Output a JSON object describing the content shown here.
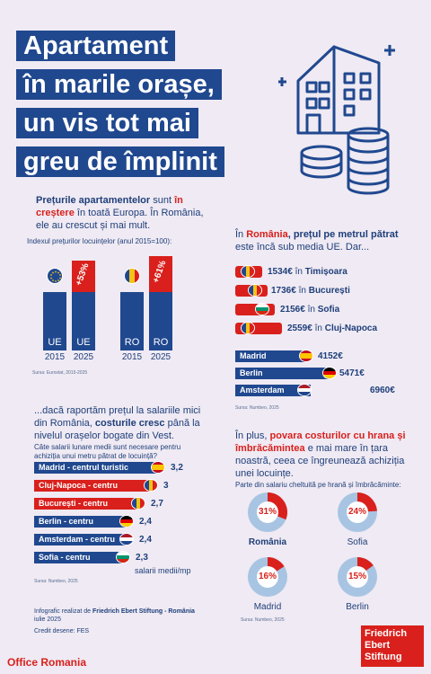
{
  "title": {
    "lines": [
      "Apartament",
      "în marile orașe,",
      "un vis tot mai",
      "greu de împlinit"
    ]
  },
  "section1": {
    "intro_parts": [
      "Prețurile apartamentelor",
      " sunt ",
      "în creștere",
      " în toată Europa. În România, ele au crescut și mai mult."
    ],
    "index_label": "Indexul prețurilor locuințelor (anul 2015=100):",
    "bars": [
      {
        "label": "UE",
        "year": "2015",
        "flag": "eu-flag"
      },
      {
        "label": "UE",
        "year": "2025",
        "pct": "+53%"
      },
      {
        "label": "RO",
        "year": "2015",
        "flag": "ro-flag"
      },
      {
        "label": "RO",
        "year": "2025",
        "pct": "+61%"
      }
    ],
    "source": "Sursa: Eurostat, 2015-2025"
  },
  "section2": {
    "intro_parts": [
      "În ",
      "România",
      ", prețul pe metrul pătrat",
      " este încă sub media UE. Dar..."
    ],
    "ro_cities": [
      {
        "value": "1534€",
        "prep": "în",
        "city": "Timișoara"
      },
      {
        "value": "1736€",
        "prep": "în",
        "city": "București"
      },
      {
        "value": "2156€",
        "prep": "în",
        "city": "Sofia"
      },
      {
        "value": "2559€",
        "prep": "în",
        "city": "Cluj-Napoca"
      }
    ],
    "eu_cities": [
      {
        "city": "Madrid",
        "value": "4152€",
        "frac": 0.6
      },
      {
        "city": "Berlin",
        "value": "5471€",
        "frac": 0.79
      },
      {
        "city": "Amsterdam",
        "value": "6960€",
        "frac": 1.0
      }
    ],
    "source": "Sursa: Numbeo, 2025"
  },
  "section3": {
    "intro_parts": [
      "...dacă raportăm prețul la salariile mici din România, ",
      "costurile cresc",
      " până la nivelul orașelor bogate din Vest."
    ],
    "question": "Câte salarii lunare medii sunt necesare pentru achiziția unui metru pătrat de locuință?",
    "rows": [
      {
        "label": "Madrid - centrul turistic",
        "value": "3,2",
        "color": "#20488f",
        "frac": 1.0
      },
      {
        "label": "Cluj-Napoca - centru",
        "value": "3",
        "color": "#d9201c",
        "frac": 0.94
      },
      {
        "label": "București - centru",
        "value": "2,7",
        "color": "#d9201c",
        "frac": 0.84
      },
      {
        "label": "Berlin - centru",
        "value": "2,4",
        "color": "#20488f",
        "frac": 0.75
      },
      {
        "label": "Amsterdam - centru",
        "value": "2,4",
        "color": "#20488f",
        "frac": 0.75
      },
      {
        "label": "Sofia - centru",
        "value": "2,3",
        "color": "#20488f",
        "frac": 0.72
      }
    ],
    "unit": "salarii medii/mp",
    "source": "Sursa: Numbeo, 2025"
  },
  "section4": {
    "intro_parts": [
      "În plus, ",
      "povara costurilor cu hrana și îmbrăcămintea",
      " e mai mare în țara noastră, ceea ce îngreunează achiziția unei locuințe."
    ],
    "subtitle": "Parte din salariu cheltuită pe hrană și îmbrăcăminte:",
    "donuts": [
      {
        "city": "România",
        "pct": "31%",
        "value": 0.31,
        "highlight": true
      },
      {
        "city": "Sofia",
        "pct": "24%",
        "value": 0.24,
        "highlight": false
      },
      {
        "city": "Madrid",
        "pct": "16%",
        "value": 0.16,
        "highlight": false
      },
      {
        "city": "Berlin",
        "pct": "15%",
        "value": 0.15,
        "highlight": false
      }
    ],
    "source": "Sursa: Numbeo, 2025"
  },
  "footer": {
    "credit_prefix": "Infografic realizat de ",
    "credit_org": "Friedrich Ebert Stiftung - România",
    "credit_date": "iulie 2025",
    "credit_design": "Credit desene: FES",
    "office": "Office Romania",
    "logo_lines": [
      "Friedrich",
      "Ebert",
      "Stiftung"
    ]
  },
  "colors": {
    "blue": "#20488f",
    "red": "#d9201c",
    "light_blue": "#a8c4e3",
    "background": "#efeaf3"
  }
}
